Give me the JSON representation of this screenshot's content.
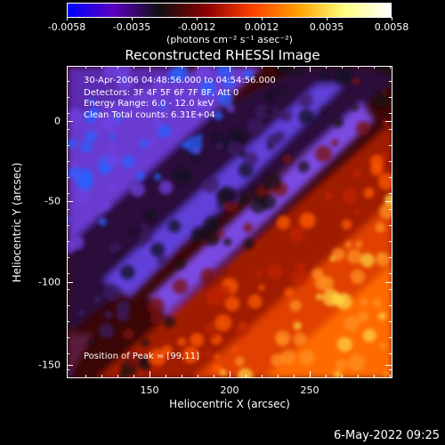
{
  "colorbar": {
    "tick_labels": [
      "-0.0058",
      "-0.0035",
      "-0.0012",
      "0.0012",
      "0.0035",
      "0.0058"
    ],
    "units": "(photons cm⁻² s⁻¹ asec⁻²)",
    "colors": [
      "#0000ff",
      "#5a00c0",
      "#101010",
      "#8a0000",
      "#ff4000",
      "#ffa000",
      "#ffff80",
      "#ffffff"
    ]
  },
  "plot": {
    "title": "Reconstructed RHESSI Image",
    "info_lines": [
      "30-Apr-2006 04:48:56.000 to 04:54:56.000",
      "Detectors: 3F 4F 5F 6F 7F 8F, Att 0",
      "Energy Range: 6.0 - 12.0 keV",
      "Clean     Total counts: 6.31E+04"
    ],
    "peak_text": "Position of Peak = [99,11]"
  },
  "axes": {
    "xlabel": "Heliocentric X (arcsec)",
    "ylabel": "Heliocentric Y (arcsec)",
    "x_ticks": [
      "150",
      "200",
      "250"
    ],
    "y_ticks": [
      "0",
      "-50",
      "-100",
      "-150"
    ]
  },
  "footer": {
    "date_stamp": "6-May-2022 09:25"
  }
}
